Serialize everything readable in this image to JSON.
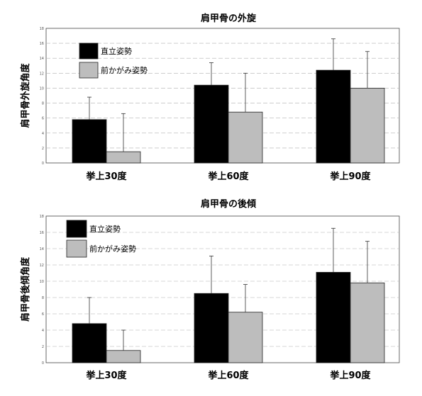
{
  "colors": {
    "series1": "#000000",
    "series2": "#bdbdbd",
    "grid": "#b0b0b0",
    "frame": "#444444"
  },
  "chart_data": [
    {
      "type": "bar",
      "title": "肩甲骨の外旋",
      "ylabel": "肩甲骨外旋角度",
      "xlabel": "",
      "categories": [
        "挙上30度",
        "挙上60度",
        "挙上90度"
      ],
      "ylim": [
        0,
        18
      ],
      "yticks": [
        "0",
        "2",
        "4",
        "6",
        "8",
        "10",
        "12",
        "14",
        "16",
        "18"
      ],
      "series": [
        {
          "name": "直立姿勢",
          "values": [
            5.8,
            10.4,
            12.4
          ],
          "errors": [
            3.0,
            3.0,
            4.2
          ]
        },
        {
          "name": "前かがみ姿勢",
          "values": [
            1.5,
            6.8,
            10.0
          ],
          "errors": [
            5.1,
            5.2,
            4.9
          ]
        }
      ],
      "grid": true,
      "legend": "top-left"
    },
    {
      "type": "bar",
      "title": "肩甲骨の後傾",
      "ylabel": "肩甲骨後傾角度",
      "xlabel": "",
      "categories": [
        "挙上30度",
        "挙上60度",
        "挙上90度"
      ],
      "ylim": [
        0,
        18
      ],
      "yticks": [
        "0",
        "2",
        "4",
        "6",
        "8",
        "10",
        "12",
        "14",
        "16",
        "18"
      ],
      "series": [
        {
          "name": "直立姿勢",
          "values": [
            4.8,
            8.5,
            11.1
          ],
          "errors": [
            3.2,
            4.6,
            5.4
          ]
        },
        {
          "name": "前かがみ姿勢",
          "values": [
            1.5,
            6.2,
            9.8
          ],
          "errors": [
            2.5,
            3.4,
            5.1
          ]
        }
      ],
      "grid": true,
      "legend": "top-left"
    }
  ]
}
